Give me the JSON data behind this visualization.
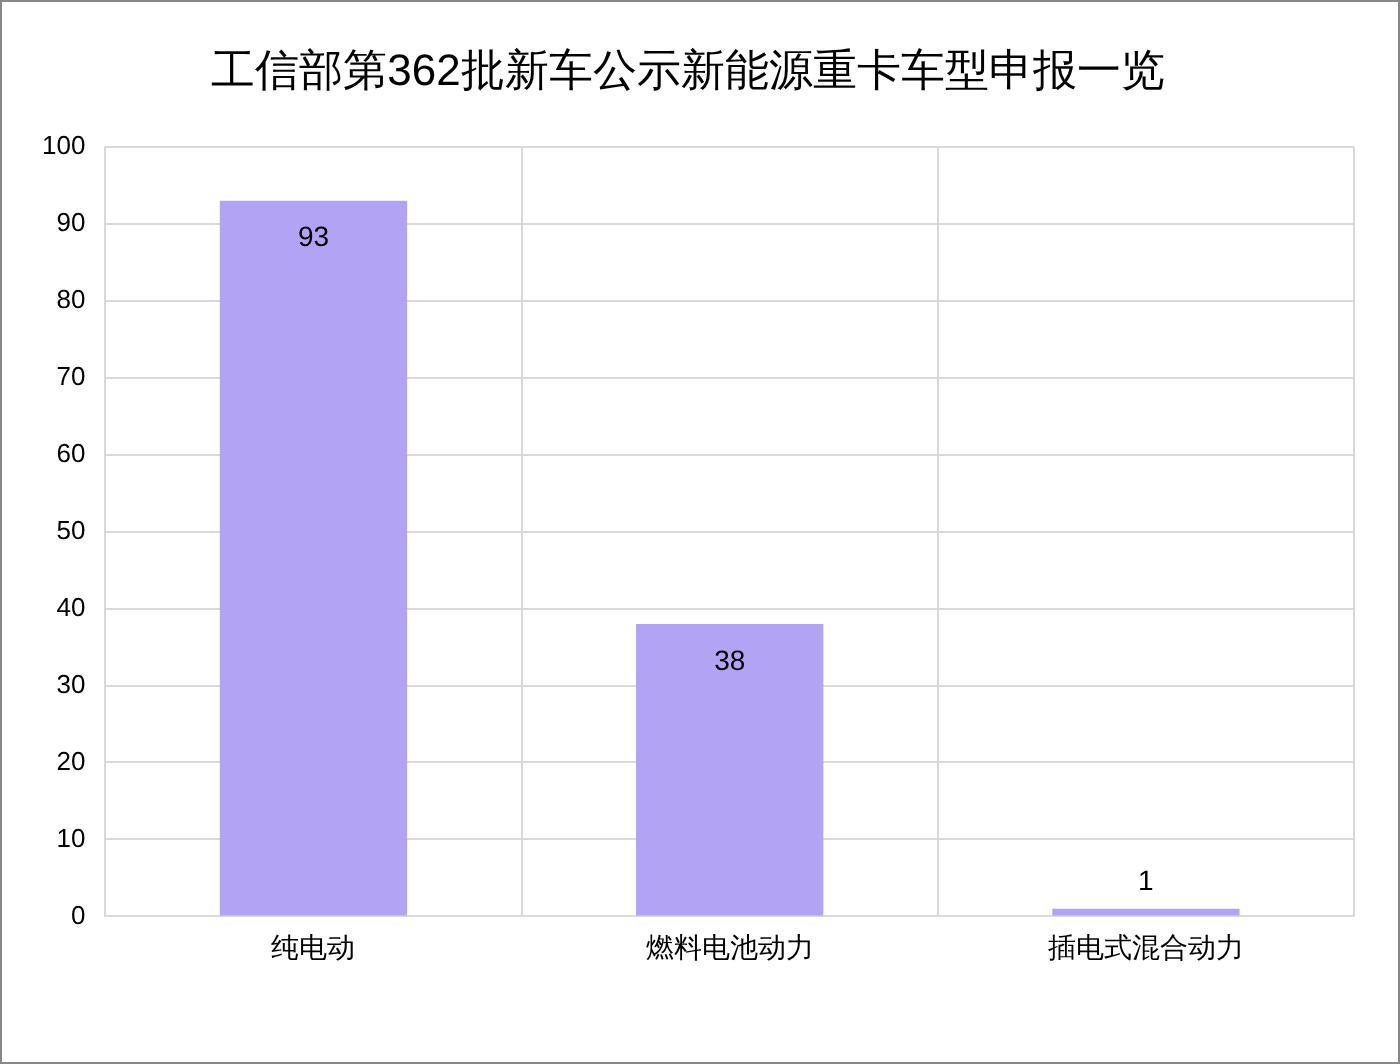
{
  "chart_data": {
    "type": "bar",
    "title": "工信部第362批新车公示新能源重卡车型申报一览",
    "categories": [
      "纯电动",
      "燃料电池动力",
      "插电式混合动力"
    ],
    "values": [
      93,
      38,
      1
    ],
    "color": "#b3a3f5",
    "ylim": [
      0,
      100
    ],
    "yticks": [
      0,
      10,
      20,
      30,
      40,
      50,
      60,
      70,
      80,
      90,
      100
    ],
    "grid": true,
    "data_labels": true,
    "legend": false
  }
}
